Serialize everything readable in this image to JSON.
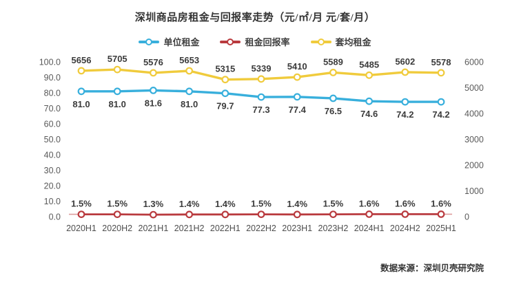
{
  "title": "深圳商品房租金与回报率走势（元/㎡/月 元/套/月）",
  "source": "数据来源：深圳贝壳研究院",
  "chart_data": {
    "type": "line",
    "title": "深圳商品房租金与回报率走势（元/㎡/月 元/套/月）",
    "categories": [
      "2020H1",
      "2020H2",
      "2021H1",
      "2021H2",
      "2022H1",
      "2022H2",
      "2023H1",
      "2023H2",
      "2024H1",
      "2024H2",
      "2025H1"
    ],
    "series": [
      {
        "name": "单位租金",
        "color": "#38AFDC",
        "axis": "left",
        "values": [
          81.0,
          81.0,
          81.6,
          81.0,
          79.7,
          77.3,
          77.4,
          76.5,
          74.6,
          74.2,
          74.2
        ],
        "labels": [
          "81.0",
          "81.0",
          "81.6",
          "81.0",
          "79.7",
          "77.3",
          "77.4",
          "76.5",
          "74.6",
          "74.2",
          "74.2"
        ],
        "label_position": "below"
      },
      {
        "name": "租金回报率",
        "color": "#B93A3E",
        "axis": "left",
        "values": [
          1.5,
          1.5,
          1.3,
          1.4,
          1.4,
          1.5,
          1.4,
          1.5,
          1.6,
          1.6,
          1.6
        ],
        "labels": [
          "1.5%",
          "1.5%",
          "1.3%",
          "1.4%",
          "1.4%",
          "1.5%",
          "1.4%",
          "1.5%",
          "1.6%",
          "1.6%",
          "1.6%"
        ],
        "label_position": "above"
      },
      {
        "name": "套均租金",
        "color": "#F0CB3C",
        "axis": "right",
        "values": [
          5656,
          5705,
          5576,
          5653,
          5315,
          5339,
          5410,
          5589,
          5485,
          5602,
          5578
        ],
        "labels": [
          "5656",
          "5705",
          "5576",
          "5653",
          "5315",
          "5339",
          "5410",
          "5589",
          "5485",
          "5602",
          "5578"
        ],
        "label_position": "above"
      }
    ],
    "left_axis": {
      "ticks": [
        "100.0",
        "90.0",
        "80.0",
        "70.0",
        "60.0",
        "50.0",
        "40.0",
        "30.0",
        "20.0",
        "10.0",
        "0.0"
      ],
      "min": 0,
      "max": 100
    },
    "right_axis": {
      "ticks": [
        "6000",
        "5000",
        "4000",
        "3000",
        "2000",
        "1000",
        "0"
      ],
      "min": 0,
      "max": 6000
    },
    "legend_position": "top",
    "grid": false,
    "axis_line_color": "#DE9C9C"
  }
}
